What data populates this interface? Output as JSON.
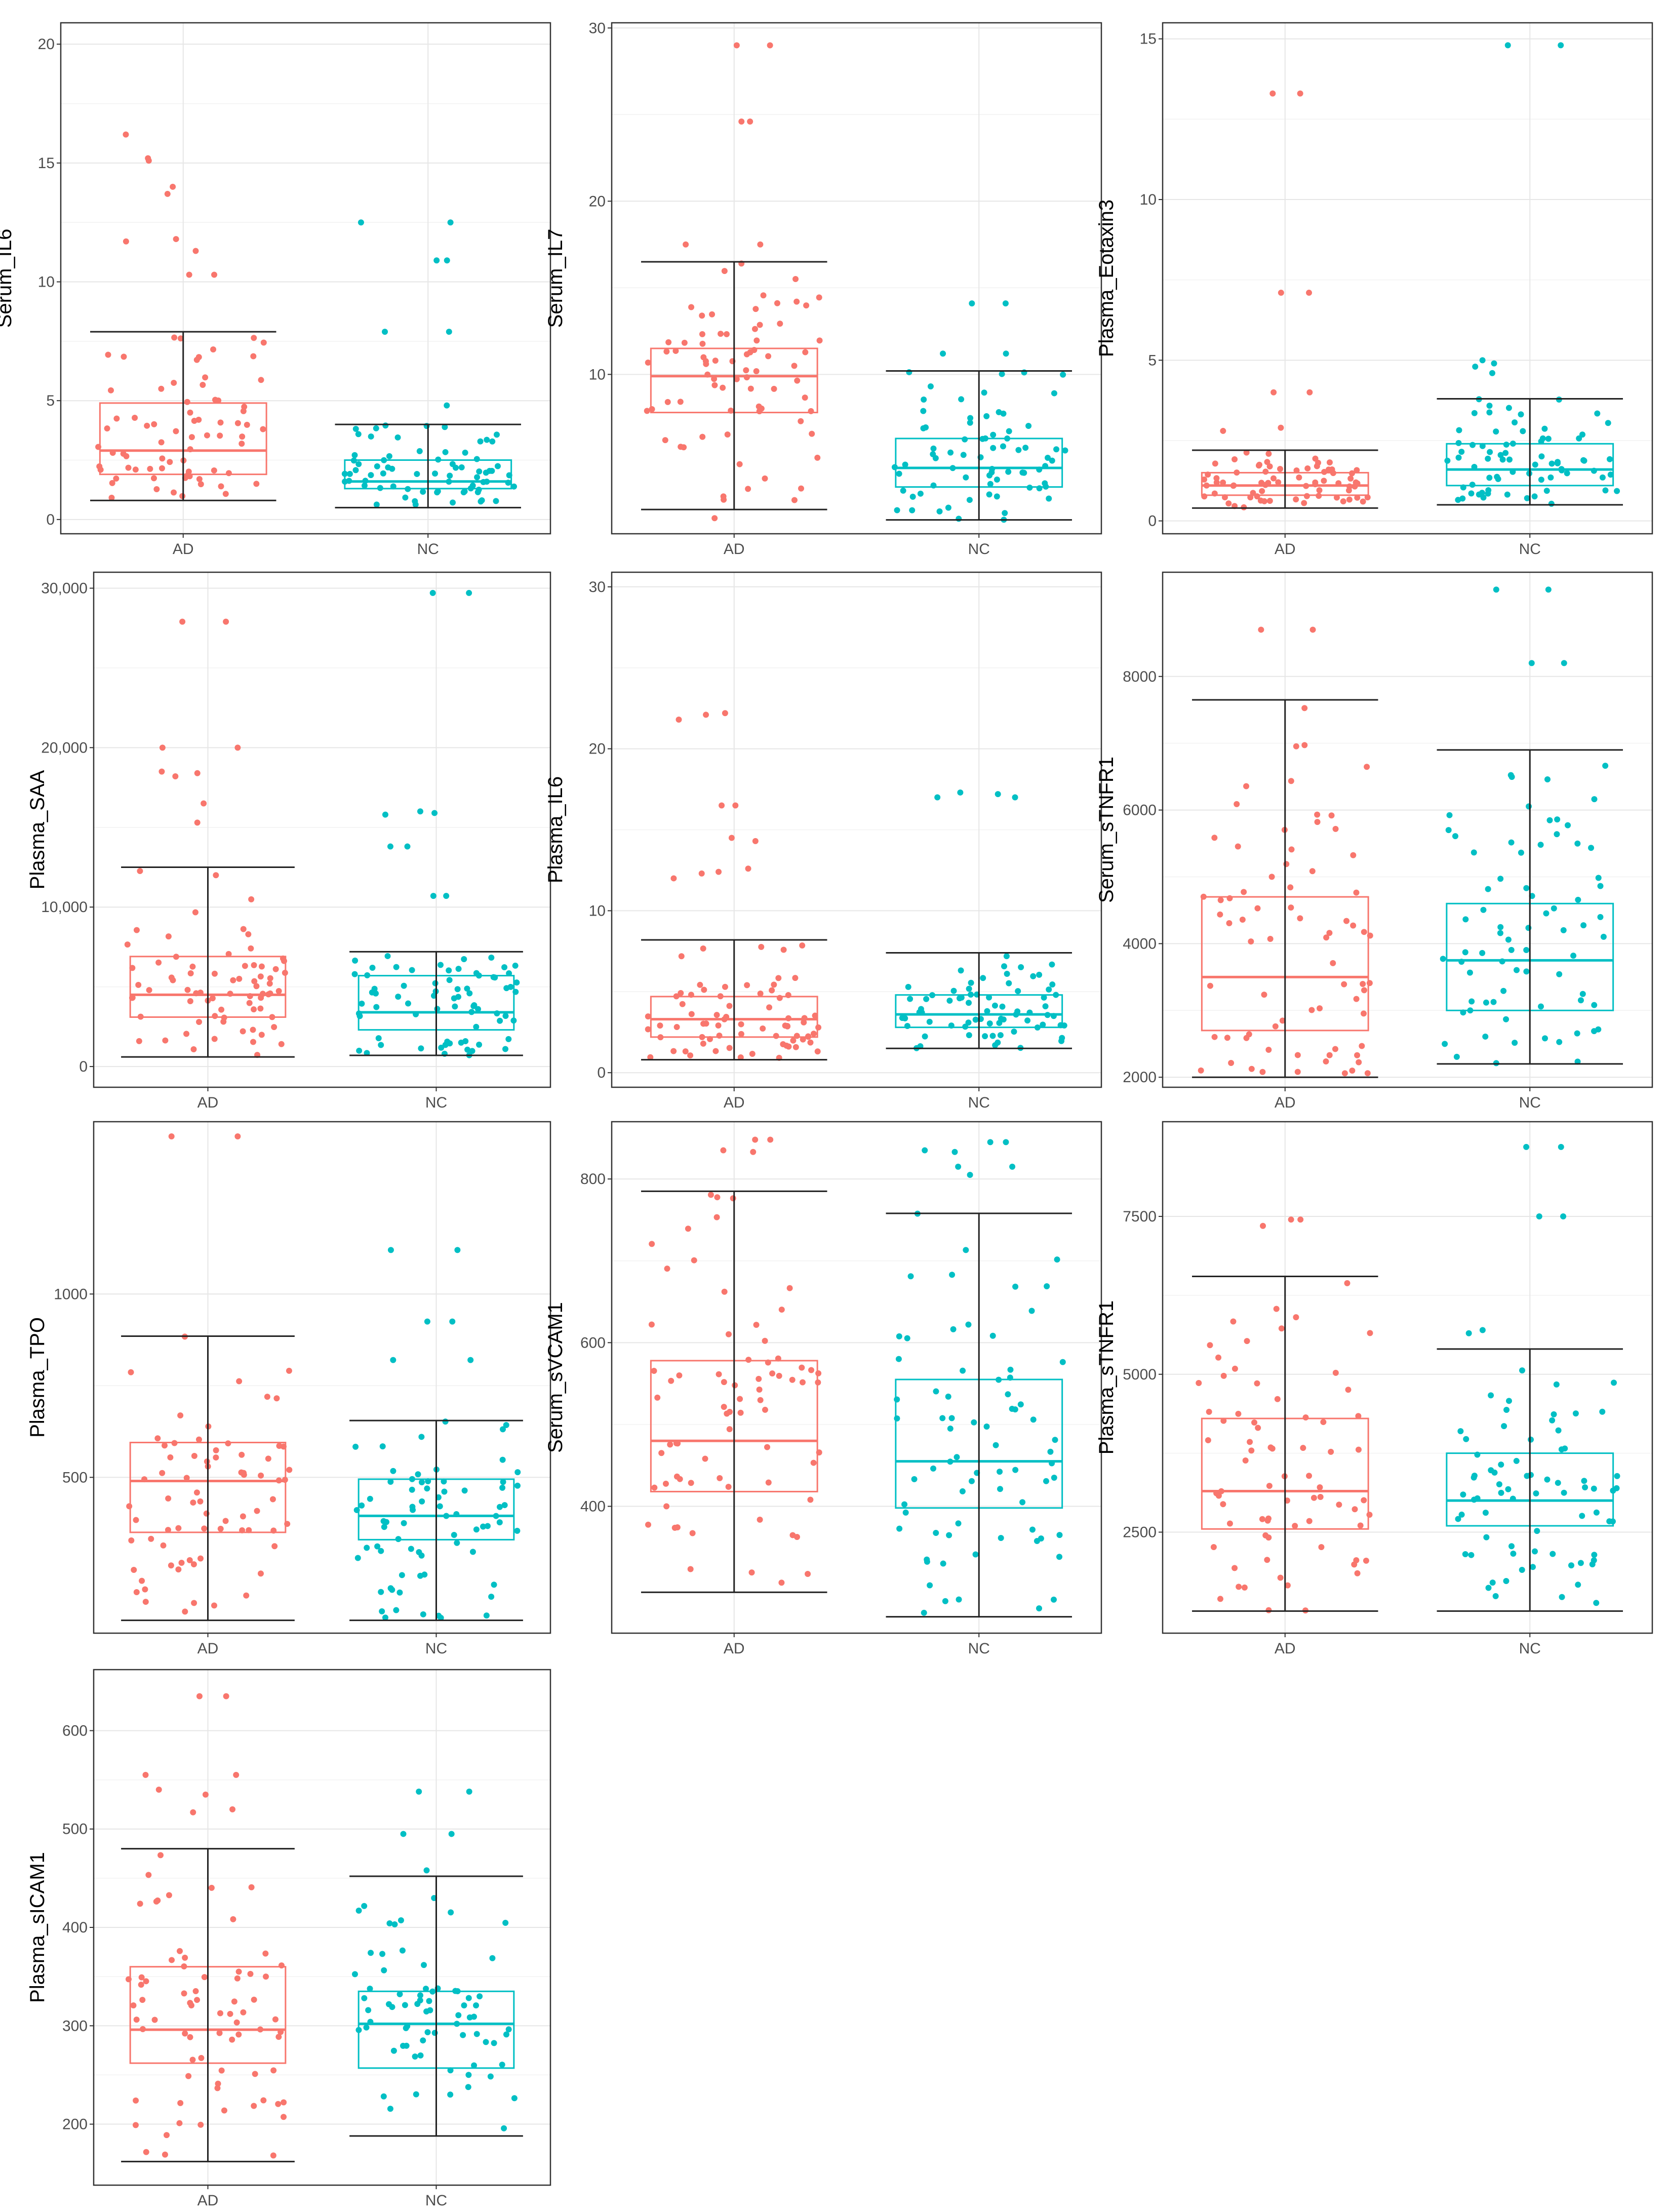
{
  "colors": {
    "AD": "#F8766D",
    "NC": "#00BFC4",
    "whisker": "#222222",
    "grid": "#e6e6e6",
    "frame": "#333333"
  },
  "groups": [
    "AD",
    "NC"
  ],
  "chart_data": [
    {
      "type": "box-jitter",
      "title": "",
      "xlabel": "",
      "ylabel": "Serum_IL6",
      "ylim": [
        -0.6,
        20.9
      ],
      "yticks": [
        "0",
        "5",
        "10",
        "15",
        "20"
      ],
      "ytick_values": [
        0,
        5,
        10,
        15,
        20
      ],
      "groups": [
        "AD",
        "NC"
      ],
      "AD": {
        "whisker_low": 0.8,
        "q1": 1.9,
        "median": 2.9,
        "q3": 4.9,
        "whisker_high": 7.9,
        "outliers": [
          16.2,
          15.2,
          15.1,
          14.0,
          13.7,
          11.8,
          11.7,
          11.3,
          10.3,
          10.3
        ]
      },
      "NC": {
        "whisker_low": 0.5,
        "q1": 1.3,
        "median": 1.6,
        "q3": 2.5,
        "whisker_high": 4.0,
        "outliers": [
          12.5,
          12.5,
          10.9,
          10.9,
          7.9,
          7.9,
          4.8
        ]
      }
    },
    {
      "type": "box-jitter",
      "title": "",
      "xlabel": "",
      "ylabel": "Serum_IL7",
      "ylim": [
        0.8,
        30.3
      ],
      "yticks": [
        "10",
        "20",
        "30"
      ],
      "ytick_values": [
        10,
        20,
        30
      ],
      "groups": [
        "AD",
        "NC"
      ],
      "AD": {
        "whisker_low": 2.2,
        "q1": 7.8,
        "median": 9.9,
        "q3": 11.5,
        "whisker_high": 16.5,
        "outliers": [
          29.0,
          29.0,
          24.6,
          24.6,
          17.5,
          17.5,
          16.4,
          1.7
        ]
      },
      "NC": {
        "whisker_low": 1.6,
        "q1": 3.5,
        "median": 4.6,
        "q3": 6.3,
        "whisker_high": 10.2,
        "outliers": [
          14.1,
          14.1,
          11.2,
          11.2
        ]
      }
    },
    {
      "type": "box-jitter",
      "title": "",
      "xlabel": "",
      "ylabel": "Plasma_Eotaxin3",
      "ylim": [
        -0.4,
        15.5
      ],
      "yticks": [
        "0",
        "5",
        "10",
        "15"
      ],
      "ytick_values": [
        0,
        5,
        10,
        15
      ],
      "groups": [
        "AD",
        "NC"
      ],
      "AD": {
        "whisker_low": 0.4,
        "q1": 0.8,
        "median": 1.1,
        "q3": 1.5,
        "whisker_high": 2.2,
        "outliers": [
          13.3,
          13.3,
          7.1,
          7.1,
          4.0,
          4.0,
          2.9,
          2.8
        ]
      },
      "NC": {
        "whisker_low": 0.5,
        "q1": 1.1,
        "median": 1.6,
        "q3": 2.4,
        "whisker_high": 3.8,
        "outliers": [
          14.8,
          14.8,
          5.0,
          4.9,
          4.8,
          4.6
        ]
      }
    },
    {
      "type": "box-jitter",
      "title": "",
      "xlabel": "",
      "ylabel": "Plasma_SAA",
      "ylim": [
        -1300,
        31000
      ],
      "yticks": [
        "0",
        "10,000",
        "20,000",
        "30,000"
      ],
      "ytick_values": [
        0,
        10000,
        20000,
        30000
      ],
      "groups": [
        "AD",
        "NC"
      ],
      "AD": {
        "whisker_low": 600,
        "q1": 3100,
        "median": 4500,
        "q3": 6900,
        "whisker_high": 12500,
        "outliers": [
          27900,
          27900,
          20000,
          20000,
          18500,
          18400,
          18200,
          16500,
          15300
        ]
      },
      "NC": {
        "whisker_low": 700,
        "q1": 2300,
        "median": 3400,
        "q3": 5700,
        "whisker_high": 7200,
        "outliers": [
          29700,
          29700,
          16000,
          15900,
          15800,
          13800,
          13800,
          10700,
          10700
        ]
      }
    },
    {
      "type": "box-jitter",
      "title": "",
      "xlabel": "",
      "ylabel": "Plasma_IL6",
      "ylim": [
        -0.9,
        30.9
      ],
      "yticks": [
        "0",
        "10",
        "20",
        "30"
      ],
      "ytick_values": [
        0,
        10,
        20,
        30
      ],
      "groups": [
        "AD",
        "NC"
      ],
      "AD": {
        "whisker_low": 0.8,
        "q1": 2.2,
        "median": 3.3,
        "q3": 4.7,
        "whisker_high": 8.2,
        "outliers": [
          22.2,
          22.1,
          21.8,
          16.5,
          16.5,
          14.5,
          14.3,
          12.6,
          12.4,
          12.3,
          12.0
        ]
      },
      "NC": {
        "whisker_low": 1.5,
        "q1": 2.8,
        "median": 3.6,
        "q3": 4.8,
        "whisker_high": 7.4,
        "outliers": [
          17.3,
          17.2,
          17.0,
          17.0
        ]
      }
    },
    {
      "type": "box-jitter",
      "title": "",
      "xlabel": "",
      "ylabel": "Serum_sTNFR1",
      "ylim": [
        1850,
        9560
      ],
      "yticks": [
        "2000",
        "4000",
        "6000",
        "8000"
      ],
      "ytick_values": [
        2000,
        4000,
        6000,
        8000
      ],
      "groups": [
        "AD",
        "NC"
      ],
      "AD": {
        "whisker_low": 2000,
        "q1": 2700,
        "median": 3500,
        "q3": 4700,
        "whisker_high": 7650,
        "outliers": [
          8700,
          8700
        ]
      },
      "NC": {
        "whisker_low": 2200,
        "q1": 3000,
        "median": 3750,
        "q3": 4600,
        "whisker_high": 6900,
        "outliers": [
          9300,
          9300,
          8200,
          8200
        ]
      }
    },
    {
      "type": "box-jitter",
      "title": "",
      "xlabel": "",
      "ylabel": "Plasma_TPO",
      "ylim": [
        75,
        1470
      ],
      "yticks": [
        "500",
        "1000"
      ],
      "ytick_values": [
        500,
        1000
      ],
      "groups": [
        "AD",
        "NC"
      ],
      "AD": {
        "whisker_low": 110,
        "q1": 350,
        "median": 490,
        "q3": 595,
        "whisker_high": 885,
        "outliers": [
          1430,
          1430
        ]
      },
      "NC": {
        "whisker_low": 110,
        "q1": 330,
        "median": 395,
        "q3": 495,
        "whisker_high": 655,
        "outliers": [
          1120,
          1120,
          925,
          925,
          820,
          820
        ]
      }
    },
    {
      "type": "box-jitter",
      "title": "",
      "xlabel": "",
      "ylabel": "Serum_sVCAM1",
      "ylim": [
        245,
        870
      ],
      "yticks": [
        "400",
        "600",
        "800"
      ],
      "ytick_values": [
        400,
        600,
        800
      ],
      "groups": [
        "AD",
        "NC"
      ],
      "AD": {
        "whisker_low": 295,
        "q1": 418,
        "median": 480,
        "q3": 578,
        "whisker_high": 785,
        "outliers": [
          848,
          848,
          835,
          833
        ]
      },
      "NC": {
        "whisker_low": 265,
        "q1": 398,
        "median": 455,
        "q3": 555,
        "whisker_high": 758,
        "outliers": [
          845,
          845,
          835,
          833,
          815,
          815,
          805
        ]
      }
    },
    {
      "type": "box-jitter",
      "title": "",
      "xlabel": "",
      "ylabel": "Plasma_sTNFR1",
      "ylim": [
        900,
        9000
      ],
      "yticks": [
        "2500",
        "5000",
        "7500"
      ],
      "ytick_values": [
        2500,
        5000,
        7500
      ],
      "groups": [
        "AD",
        "NC"
      ],
      "AD": {
        "whisker_low": 1250,
        "q1": 2550,
        "median": 3150,
        "q3": 4300,
        "whisker_high": 6550,
        "outliers": [
          7450,
          7450,
          7350
        ]
      },
      "NC": {
        "whisker_low": 1250,
        "q1": 2600,
        "median": 3000,
        "q3": 3750,
        "whisker_high": 5400,
        "outliers": [
          8600,
          8600,
          7500,
          7500,
          5700,
          5650
        ]
      }
    },
    {
      "type": "box-jitter",
      "title": "",
      "xlabel": "",
      "ylabel": "Plasma_sICAM1",
      "ylim": [
        138,
        662
      ],
      "yticks": [
        "200",
        "300",
        "400",
        "500",
        "600"
      ],
      "ytick_values": [
        200,
        300,
        400,
        500,
        600
      ],
      "groups": [
        "AD",
        "NC"
      ],
      "AD": {
        "whisker_low": 162,
        "q1": 262,
        "median": 296,
        "q3": 360,
        "whisker_high": 480,
        "outliers": [
          635,
          635,
          555,
          555,
          540,
          535,
          520,
          517
        ]
      },
      "NC": {
        "whisker_low": 188,
        "q1": 257,
        "median": 302,
        "q3": 335,
        "whisker_high": 452,
        "outliers": [
          538,
          538,
          495,
          495,
          458
        ]
      }
    }
  ]
}
